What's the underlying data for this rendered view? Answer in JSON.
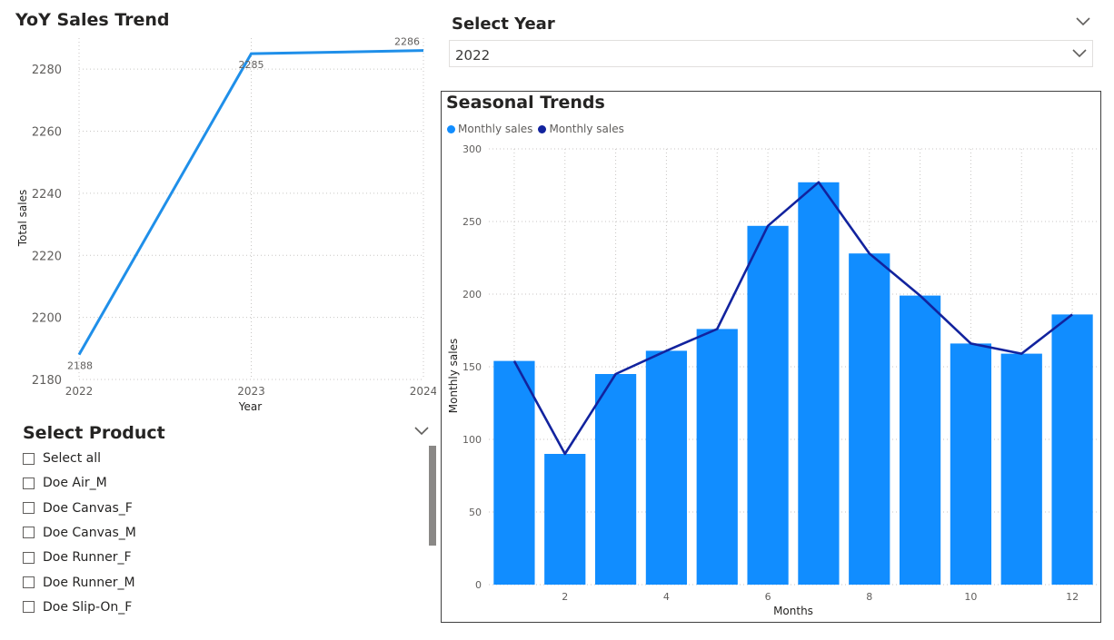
{
  "colors": {
    "line_blue": "#1f8fe9",
    "bar_blue": "#118dff",
    "line_navy": "#12239e",
    "frame": "#404040"
  },
  "yoy": {
    "title": "YoY Sales Trend",
    "xlabel": "Year",
    "ylabel": "Total sales"
  },
  "year_slicer": {
    "title": "Select Year",
    "selected": "2022",
    "header_icon": "chevron-down-icon",
    "dropdown_icon": "chevron-down-icon"
  },
  "seasonal": {
    "title": "Seasonal Trends",
    "legend": [
      "Monthly sales",
      "Monthly sales"
    ],
    "xlabel": "Months",
    "ylabel": "Monthly sales"
  },
  "product_slicer": {
    "title": "Select Product",
    "header_icon": "chevron-down-icon",
    "items": [
      "Select all",
      "Doe Air_M",
      "Doe Canvas_F",
      "Doe Canvas_M",
      "Doe Runner_F",
      "Doe Runner_M",
      "Doe Slip-On_F"
    ]
  },
  "chart_data": [
    {
      "type": "line",
      "title": "YoY Sales Trend",
      "xlabel": "Year",
      "ylabel": "Total sales",
      "x": [
        2022,
        2023,
        2024
      ],
      "series": [
        {
          "values": [
            2188,
            2285,
            2286
          ]
        }
      ],
      "data_labels": [
        "2188",
        "2285",
        "2286"
      ],
      "x_ticks": [
        "2022",
        "2023",
        "2024"
      ],
      "y_ticks": [
        "2180",
        "2200",
        "2220",
        "2240",
        "2260",
        "2280"
      ],
      "ylim": [
        2180,
        2290
      ],
      "grid": true
    },
    {
      "type": "bar",
      "title": "Seasonal Trends",
      "xlabel": "Months",
      "ylabel": "Monthly sales",
      "categories": [
        1,
        2,
        3,
        4,
        5,
        6,
        7,
        8,
        9,
        10,
        11,
        12
      ],
      "series": [
        {
          "name": "Monthly sales",
          "type": "bar",
          "values": [
            154,
            90,
            145,
            161,
            176,
            247,
            277,
            228,
            199,
            166,
            159,
            186
          ]
        },
        {
          "name": "Monthly sales",
          "type": "line",
          "values": [
            154,
            90,
            145,
            161,
            176,
            247,
            277,
            228,
            199,
            166,
            159,
            186
          ]
        }
      ],
      "x_ticks": [
        "2",
        "4",
        "6",
        "8",
        "10",
        "12"
      ],
      "y_ticks": [
        "0",
        "50",
        "100",
        "150",
        "200",
        "250",
        "300"
      ],
      "ylim": [
        0,
        300
      ],
      "legend_position": "top-left",
      "grid": true
    }
  ]
}
